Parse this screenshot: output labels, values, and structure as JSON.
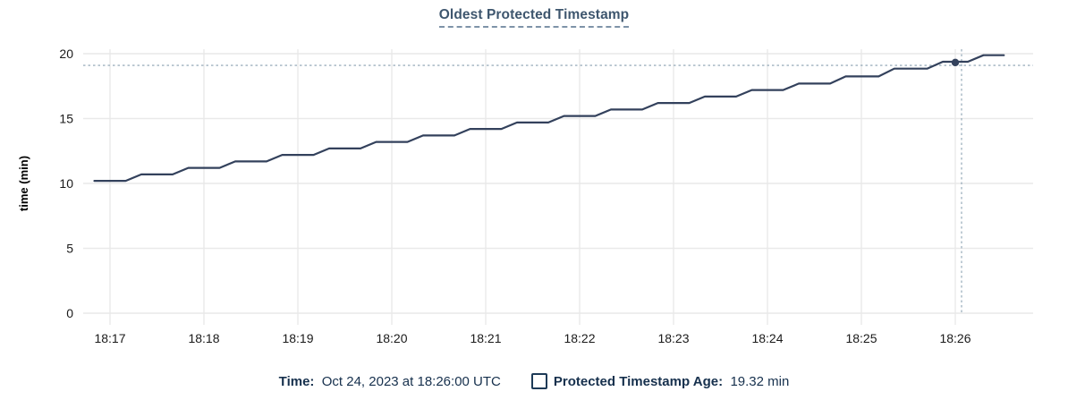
{
  "header": {
    "title": "Oldest Protected Timestamp"
  },
  "chart_data": {
    "type": "line",
    "title": "Oldest Protected Timestamp",
    "xlabel": "",
    "ylabel": "time (min)",
    "ylim": [
      0,
      20
    ],
    "yticks": [
      0,
      5,
      10,
      15,
      20
    ],
    "x_base_time": "18:16:00",
    "x_domain_seconds": [
      49,
      650
    ],
    "grid": true,
    "xticks": [
      {
        "t": 60,
        "label": "18:17"
      },
      {
        "t": 120,
        "label": "18:18"
      },
      {
        "t": 180,
        "label": "18:19"
      },
      {
        "t": 240,
        "label": "18:20"
      },
      {
        "t": 300,
        "label": "18:21"
      },
      {
        "t": 360,
        "label": "18:22"
      },
      {
        "t": 420,
        "label": "18:23"
      },
      {
        "t": 480,
        "label": "18:24"
      },
      {
        "t": 540,
        "label": "18:25"
      },
      {
        "t": 600,
        "label": "18:26"
      }
    ],
    "series": [
      {
        "name": "Protected Timestamp Age",
        "unit": "min",
        "points": [
          [
            50,
            10.2
          ],
          [
            70,
            10.2
          ],
          [
            80,
            10.7
          ],
          [
            100,
            10.7
          ],
          [
            110,
            11.2
          ],
          [
            130,
            11.2
          ],
          [
            140,
            11.7
          ],
          [
            160,
            11.7
          ],
          [
            170,
            12.2
          ],
          [
            190,
            12.2
          ],
          [
            200,
            12.7
          ],
          [
            220,
            12.7
          ],
          [
            230,
            13.2
          ],
          [
            250,
            13.2
          ],
          [
            260,
            13.7
          ],
          [
            280,
            13.7
          ],
          [
            290,
            14.2
          ],
          [
            310,
            14.2
          ],
          [
            320,
            14.7
          ],
          [
            340,
            14.7
          ],
          [
            350,
            15.2
          ],
          [
            370,
            15.2
          ],
          [
            380,
            15.7
          ],
          [
            400,
            15.7
          ],
          [
            410,
            16.2
          ],
          [
            430,
            16.2
          ],
          [
            440,
            16.7
          ],
          [
            460,
            16.7
          ],
          [
            470,
            17.2
          ],
          [
            490,
            17.2
          ],
          [
            500,
            17.7
          ],
          [
            520,
            17.7
          ],
          [
            530,
            18.25
          ],
          [
            551,
            18.25
          ],
          [
            561,
            18.85
          ],
          [
            582,
            18.85
          ],
          [
            592,
            19.38
          ],
          [
            608,
            19.38
          ],
          [
            618,
            19.88
          ],
          [
            631,
            19.88
          ]
        ]
      }
    ],
    "hover": {
      "time_seconds": 600,
      "time_label": "18:26:00",
      "value": 19.32,
      "crosshair": {
        "x_seconds": 604,
        "y_value": 19.1
      }
    }
  },
  "footer_tooltip": {
    "time_label": "Time:",
    "time_value": "Oct 24, 2023 at 18:26:00 UTC",
    "checkbox_icon": "square-outline",
    "series_label": "Protected Timestamp Age:",
    "series_value": "19.32 min"
  },
  "colors": {
    "line": "#33415c",
    "title": "#3e566e",
    "footer_text": "#16304d",
    "crosshair": "#9db0be",
    "gridline": "#e9e9e9",
    "tick_text": "#1a1a1a"
  }
}
